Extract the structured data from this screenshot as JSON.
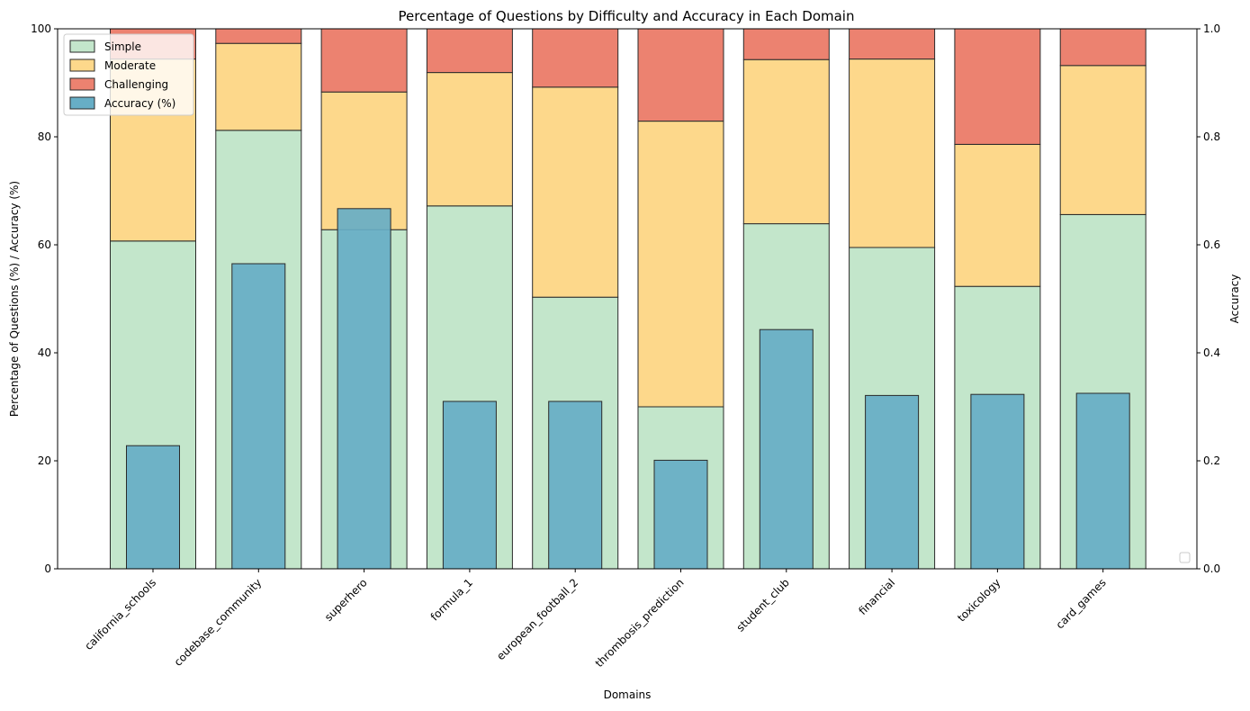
{
  "chart_data": {
    "type": "bar",
    "title": "Percentage of Questions by Difficulty and Accuracy in Each Domain",
    "xlabel": "Domains",
    "ylabel": "Percentage of Questions (%) / Accuracy (%)",
    "ylabel_right": "Accuracy",
    "ylim": [
      0,
      100
    ],
    "ylim_right": [
      0,
      1.0
    ],
    "yticks": [
      "0",
      "20",
      "40",
      "60",
      "80",
      "100"
    ],
    "yticks_right": [
      "0.0",
      "0.2",
      "0.4",
      "0.6",
      "0.8",
      "1.0"
    ],
    "categories": [
      "california_schools",
      "codebase_community",
      "superhero",
      "formula_1",
      "european_football_2",
      "thrombosis_prediction",
      "student_club",
      "financial",
      "toxicology",
      "card_games"
    ],
    "series": [
      {
        "name": "Simple",
        "color": "#c3e6cb",
        "values": [
          60.7,
          81.2,
          62.8,
          67.2,
          50.3,
          30.0,
          63.9,
          59.5,
          52.3,
          65.6
        ]
      },
      {
        "name": "Moderate",
        "color": "#fdd88b",
        "values": [
          33.7,
          16.1,
          25.5,
          24.7,
          38.9,
          52.9,
          30.4,
          34.9,
          26.3,
          27.6
        ]
      },
      {
        "name": "Challenging",
        "color": "#ec8270",
        "values": [
          5.6,
          2.7,
          11.7,
          8.1,
          10.8,
          17.1,
          5.7,
          5.6,
          21.4,
          6.8
        ]
      },
      {
        "name": "Accuracy (%)",
        "color": "#67aec6",
        "values": [
          22.8,
          56.5,
          66.7,
          31.0,
          31.0,
          20.1,
          44.3,
          32.1,
          32.3,
          32.5
        ]
      }
    ],
    "legend_position": "top-left"
  }
}
